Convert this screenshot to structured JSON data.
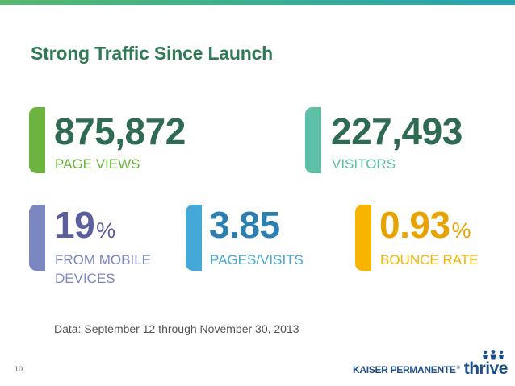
{
  "slide": {
    "title": "Strong Traffic Since Launch",
    "page_number": "10",
    "footnote": "Data: September 12 through November 30, 2013"
  },
  "stats": {
    "page_views": {
      "value": "875,872",
      "label": "PAGE VIEWS",
      "color": "#6cb33f"
    },
    "visitors": {
      "value": "227,493",
      "label": "VISITORS",
      "color": "#5dbfa6"
    },
    "mobile": {
      "value": "19",
      "unit": "%",
      "label_line1": "FROM MOBILE",
      "label_line2": "DEVICES",
      "color": "#7c87c2"
    },
    "pages_per_visit": {
      "value": "3.85",
      "label": "PAGES/VISITS",
      "color": "#45a9d8"
    },
    "bounce_rate": {
      "value": "0.93",
      "unit": "%",
      "label": "BOUNCE RATE",
      "color": "#f7b500"
    }
  },
  "logo": {
    "brand": "KAISER PERMANENTE",
    "registered": "®",
    "product": "thrive",
    "icon": "people-icon"
  },
  "colors": {
    "title": "#2f7a54",
    "number_dark": "#2e6b52",
    "number_mobile": "#5b5f9c",
    "number_pages": "#2d7fb0",
    "number_bounce": "#e8a300",
    "brand_blue": "#1f4e87"
  }
}
